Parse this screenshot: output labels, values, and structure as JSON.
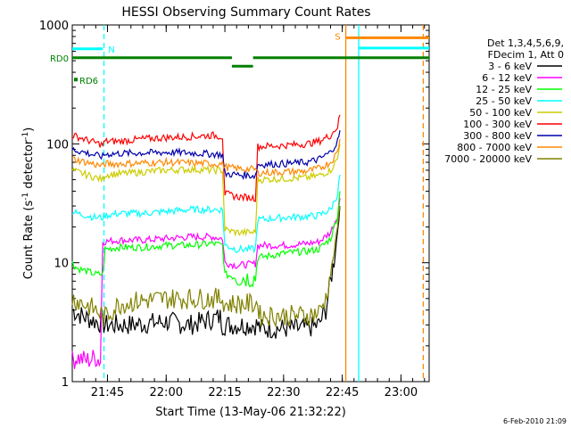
{
  "chart_data": {
    "type": "line",
    "title": "HESSI Observing Summary Count Rates",
    "xlabel": "Start Time (13-May-06 21:32:22)",
    "ylabel_main": "Count Rate (s",
    "ylabel_sup1": "-1",
    "ylabel_mid": " detector",
    "ylabel_sup2": "-1",
    "ylabel_end": ")",
    "footer": "6-Feb-2010 21:09",
    "y_scale": "log",
    "ylim": [
      1,
      1000
    ],
    "xlim": [
      21.6,
      23.12
    ],
    "x_ticks": [
      {
        "v": 21.75,
        "label": "21:45"
      },
      {
        "v": 22.0,
        "label": "22:00"
      },
      {
        "v": 22.25,
        "label": "22:15"
      },
      {
        "v": 22.5,
        "label": "22:30"
      },
      {
        "v": 22.75,
        "label": "22:45"
      },
      {
        "v": 23.0,
        "label": "23:00"
      }
    ],
    "y_ticks": [
      {
        "v": 1,
        "label": "1"
      },
      {
        "v": 10,
        "label": "10"
      },
      {
        "v": 100,
        "label": "100"
      },
      {
        "v": 1000,
        "label": "1000"
      }
    ],
    "legend": {
      "header1": "Det 1,3,4,5,6,9,",
      "header2": "FDecim 1, Att 0",
      "placement": "right"
    },
    "series": [
      {
        "name": "3 - 6 keV",
        "color": "#000000",
        "points": [
          [
            21.6,
            4
          ],
          [
            21.65,
            3.5
          ],
          [
            21.74,
            3
          ],
          [
            21.85,
            3
          ],
          [
            22.0,
            3.2
          ],
          [
            22.1,
            3
          ],
          [
            22.23,
            3.5
          ],
          [
            22.24,
            3
          ],
          [
            22.25,
            3
          ],
          [
            22.39,
            3
          ],
          [
            22.4,
            2.8
          ],
          [
            22.5,
            2.8
          ],
          [
            22.6,
            2.8
          ],
          [
            22.65,
            3
          ],
          [
            22.68,
            4
          ],
          [
            22.7,
            7
          ],
          [
            22.72,
            12
          ],
          [
            22.74,
            30
          ]
        ]
      },
      {
        "name": "6 - 12 keV",
        "color": "#ff00ff",
        "points": [
          [
            21.6,
            1.5
          ],
          [
            21.62,
            1.6
          ],
          [
            21.66,
            1.5
          ],
          [
            21.7,
            1.6
          ],
          [
            21.72,
            1.5
          ],
          [
            21.73,
            15
          ],
          [
            21.8,
            15.5
          ],
          [
            21.9,
            15.5
          ],
          [
            22.0,
            16
          ],
          [
            22.1,
            16.5
          ],
          [
            22.2,
            16.5
          ],
          [
            22.24,
            16
          ],
          [
            22.25,
            10
          ],
          [
            22.3,
            9.5
          ],
          [
            22.38,
            9.8
          ],
          [
            22.39,
            14
          ],
          [
            22.5,
            14
          ],
          [
            22.6,
            14.5
          ],
          [
            22.65,
            15
          ],
          [
            22.7,
            18
          ],
          [
            22.73,
            25
          ],
          [
            22.74,
            35
          ]
        ]
      },
      {
        "name": "12 - 25 keV",
        "color": "#00ff00",
        "points": [
          [
            21.6,
            10
          ],
          [
            21.62,
            9
          ],
          [
            21.66,
            8.5
          ],
          [
            21.7,
            8
          ],
          [
            21.73,
            8
          ],
          [
            21.74,
            13
          ],
          [
            21.8,
            13.5
          ],
          [
            21.9,
            13.5
          ],
          [
            22.0,
            14
          ],
          [
            22.1,
            14
          ],
          [
            22.2,
            14.5
          ],
          [
            22.24,
            14
          ],
          [
            22.25,
            8
          ],
          [
            22.3,
            7.5
          ],
          [
            22.38,
            7.5
          ],
          [
            22.39,
            11
          ],
          [
            22.5,
            12
          ],
          [
            22.6,
            12.5
          ],
          [
            22.65,
            13
          ],
          [
            22.7,
            16
          ],
          [
            22.73,
            25
          ],
          [
            22.74,
            40
          ]
        ]
      },
      {
        "name": "25 - 50 keV",
        "color": "#00ffff",
        "points": [
          [
            21.6,
            27
          ],
          [
            21.62,
            26
          ],
          [
            21.66,
            25
          ],
          [
            21.7,
            24
          ],
          [
            21.73,
            24
          ],
          [
            21.74,
            25
          ],
          [
            21.8,
            26
          ],
          [
            21.9,
            26
          ],
          [
            22.0,
            27
          ],
          [
            22.1,
            28
          ],
          [
            22.2,
            28
          ],
          [
            22.24,
            28
          ],
          [
            22.25,
            14
          ],
          [
            22.3,
            13
          ],
          [
            22.38,
            13
          ],
          [
            22.39,
            23
          ],
          [
            22.5,
            24
          ],
          [
            22.6,
            24.5
          ],
          [
            22.65,
            25
          ],
          [
            22.7,
            28
          ],
          [
            22.73,
            38
          ],
          [
            22.74,
            55
          ]
        ]
      },
      {
        "name": "50 - 100 keV",
        "color": "#cccc00",
        "points": [
          [
            21.6,
            60
          ],
          [
            21.62,
            58
          ],
          [
            21.66,
            55
          ],
          [
            21.7,
            52
          ],
          [
            21.73,
            50
          ],
          [
            21.74,
            55
          ],
          [
            21.8,
            56
          ],
          [
            21.9,
            58
          ],
          [
            22.0,
            60
          ],
          [
            22.1,
            61
          ],
          [
            22.2,
            60
          ],
          [
            22.24,
            60
          ],
          [
            22.25,
            19
          ],
          [
            22.3,
            18
          ],
          [
            22.38,
            18
          ],
          [
            22.39,
            50
          ],
          [
            22.5,
            51
          ],
          [
            22.6,
            52
          ],
          [
            22.65,
            54
          ],
          [
            22.7,
            60
          ],
          [
            22.73,
            75
          ],
          [
            22.74,
            100
          ]
        ]
      },
      {
        "name": "100 - 300 keV",
        "color": "#ff0000",
        "points": [
          [
            21.6,
            118
          ],
          [
            21.62,
            115
          ],
          [
            21.66,
            108
          ],
          [
            21.7,
            102
          ],
          [
            21.73,
            98
          ],
          [
            21.74,
            105
          ],
          [
            21.8,
            105
          ],
          [
            21.9,
            110
          ],
          [
            22.0,
            113
          ],
          [
            22.1,
            115
          ],
          [
            22.2,
            118
          ],
          [
            22.24,
            115
          ],
          [
            22.25,
            38
          ],
          [
            22.3,
            36
          ],
          [
            22.38,
            35
          ],
          [
            22.39,
            95
          ],
          [
            22.5,
            97
          ],
          [
            22.6,
            100
          ],
          [
            22.65,
            105
          ],
          [
            22.7,
            118
          ],
          [
            22.73,
            140
          ],
          [
            22.74,
            175
          ]
        ]
      },
      {
        "name": "300 - 800 keV",
        "color": "#0000aa",
        "points": [
          [
            21.6,
            90
          ],
          [
            21.62,
            88
          ],
          [
            21.66,
            84
          ],
          [
            21.7,
            80
          ],
          [
            21.73,
            78
          ],
          [
            21.74,
            82
          ],
          [
            21.8,
            83
          ],
          [
            21.9,
            84
          ],
          [
            22.0,
            85
          ],
          [
            22.1,
            84
          ],
          [
            22.2,
            82
          ],
          [
            22.24,
            81
          ],
          [
            22.25,
            56
          ],
          [
            22.3,
            55
          ],
          [
            22.38,
            54
          ],
          [
            22.39,
            67
          ],
          [
            22.5,
            68
          ],
          [
            22.6,
            70
          ],
          [
            22.65,
            74
          ],
          [
            22.7,
            85
          ],
          [
            22.73,
            105
          ],
          [
            22.74,
            130
          ]
        ]
      },
      {
        "name": "800 - 7000 keV",
        "color": "#ff8800",
        "points": [
          [
            21.6,
            75
          ],
          [
            21.62,
            73
          ],
          [
            21.66,
            70
          ],
          [
            21.7,
            67
          ],
          [
            21.73,
            65
          ],
          [
            21.74,
            68
          ],
          [
            21.8,
            68
          ],
          [
            21.9,
            69
          ],
          [
            22.0,
            70
          ],
          [
            22.1,
            69
          ],
          [
            22.2,
            68
          ],
          [
            22.24,
            68
          ],
          [
            22.25,
            64
          ],
          [
            22.3,
            62
          ],
          [
            22.38,
            61
          ],
          [
            22.39,
            57
          ],
          [
            22.5,
            58
          ],
          [
            22.6,
            59
          ],
          [
            22.65,
            62
          ],
          [
            22.7,
            70
          ],
          [
            22.73,
            85
          ],
          [
            22.74,
            110
          ]
        ]
      },
      {
        "name": "7000 - 20000 keV",
        "color": "#808000",
        "points": [
          [
            21.6,
            5
          ],
          [
            21.65,
            4.5
          ],
          [
            21.7,
            4
          ],
          [
            21.74,
            3.5
          ],
          [
            21.8,
            4.5
          ],
          [
            21.9,
            4.8
          ],
          [
            22.0,
            5
          ],
          [
            22.1,
            5
          ],
          [
            22.2,
            5
          ],
          [
            22.24,
            5
          ],
          [
            22.25,
            4.5
          ],
          [
            22.3,
            4.5
          ],
          [
            22.39,
            4.5
          ],
          [
            22.4,
            3.6
          ],
          [
            22.5,
            3.6
          ],
          [
            22.6,
            3.6
          ],
          [
            22.65,
            3.8
          ],
          [
            22.68,
            5
          ],
          [
            22.7,
            8
          ],
          [
            22.72,
            14
          ],
          [
            22.74,
            30
          ]
        ]
      }
    ],
    "flags": [
      {
        "label": "N",
        "color": "#00ffff",
        "level": 630,
        "segments": [
          [
            21.6,
            21.73
          ]
        ]
      },
      {
        "label": "RD0",
        "color": "#008000",
        "level": 530,
        "segments": [
          [
            21.6,
            22.28
          ],
          [
            22.37,
            23.12
          ]
        ]
      },
      {
        "label": "RD6",
        "color": "#008000",
        "level": 450,
        "segments": [
          [
            22.28,
            22.37
          ]
        ]
      },
      {
        "label": "S",
        "color": "#ff8800",
        "level": 780,
        "segments": [
          [
            22.765,
            23.12
          ]
        ]
      },
      {
        "label": "",
        "color": "#00ffff",
        "level": 640,
        "segments": [
          [
            22.82,
            23.12
          ]
        ]
      }
    ],
    "vlines": [
      {
        "v": 21.735,
        "color": "#00ffff",
        "dashed": true
      },
      {
        "v": 22.765,
        "color": "#ff8800",
        "dashed": false
      },
      {
        "v": 22.82,
        "color": "#00ffff",
        "dashed": false
      },
      {
        "v": 23.095,
        "color": "#ff8800",
        "dashed": true
      }
    ]
  }
}
